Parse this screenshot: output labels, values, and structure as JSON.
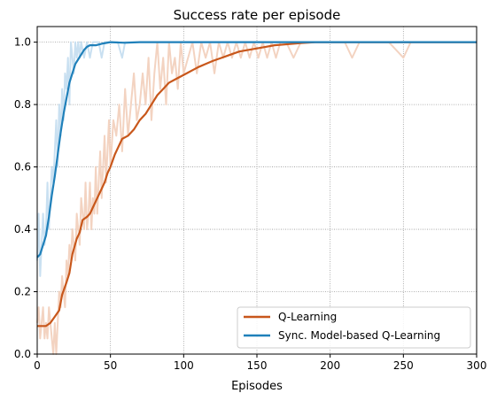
{
  "chart_data": {
    "type": "line",
    "title": "Success rate per episode",
    "xlabel": "Episodes",
    "ylabel": "",
    "xlim": [
      0,
      300
    ],
    "ylim": [
      0,
      1.05
    ],
    "x_ticks": [
      0,
      50,
      100,
      150,
      200,
      250,
      300
    ],
    "x_tick_labels": [
      "0",
      "50",
      "100",
      "150",
      "200",
      "250",
      "300"
    ],
    "y_ticks": [
      0,
      0.2,
      0.4,
      0.6,
      0.8,
      1.0
    ],
    "y_tick_labels": [
      "0.0",
      "0.2",
      "0.4",
      "0.6",
      "0.8",
      "1.0"
    ],
    "grid": true,
    "legend_position": "bottom-right",
    "series": [
      {
        "name": "Q-Learning",
        "color": "#c8571b",
        "raw_color": "#f3d3c1",
        "smoothed": [
          [
            0,
            0.09
          ],
          [
            3,
            0.09
          ],
          [
            6,
            0.09
          ],
          [
            9,
            0.1
          ],
          [
            12,
            0.12
          ],
          [
            15,
            0.14
          ],
          [
            17,
            0.19
          ],
          [
            20,
            0.23
          ],
          [
            22,
            0.26
          ],
          [
            24,
            0.32
          ],
          [
            27,
            0.37
          ],
          [
            29,
            0.39
          ],
          [
            31,
            0.43
          ],
          [
            34,
            0.44
          ],
          [
            36,
            0.45
          ],
          [
            38,
            0.47
          ],
          [
            40,
            0.49
          ],
          [
            43,
            0.52
          ],
          [
            46,
            0.55
          ],
          [
            48,
            0.58
          ],
          [
            50,
            0.6
          ],
          [
            53,
            0.64
          ],
          [
            55,
            0.66
          ],
          [
            58,
            0.69
          ],
          [
            62,
            0.7
          ],
          [
            66,
            0.72
          ],
          [
            70,
            0.75
          ],
          [
            74,
            0.77
          ],
          [
            78,
            0.8
          ],
          [
            82,
            0.83
          ],
          [
            86,
            0.85
          ],
          [
            90,
            0.87
          ],
          [
            94,
            0.88
          ],
          [
            98,
            0.89
          ],
          [
            102,
            0.9
          ],
          [
            106,
            0.91
          ],
          [
            110,
            0.92
          ],
          [
            115,
            0.93
          ],
          [
            120,
            0.94
          ],
          [
            126,
            0.95
          ],
          [
            132,
            0.96
          ],
          [
            138,
            0.97
          ],
          [
            144,
            0.975
          ],
          [
            150,
            0.98
          ],
          [
            156,
            0.985
          ],
          [
            162,
            0.99
          ],
          [
            170,
            0.993
          ],
          [
            180,
            0.997
          ],
          [
            190,
            1.0
          ],
          [
            210,
            1.0
          ],
          [
            230,
            1.0
          ],
          [
            250,
            1.0
          ],
          [
            270,
            1.0
          ],
          [
            300,
            1.0
          ]
        ],
        "raw": [
          [
            0,
            0.1
          ],
          [
            1,
            0.15
          ],
          [
            2,
            0.05
          ],
          [
            3,
            0.1
          ],
          [
            4,
            0.15
          ],
          [
            5,
            0.05
          ],
          [
            6,
            0.1
          ],
          [
            7,
            0.05
          ],
          [
            8,
            0.15
          ],
          [
            9,
            0.1
          ],
          [
            10,
            0.05
          ],
          [
            11,
            0.0
          ],
          [
            12,
            0.1
          ],
          [
            13,
            0.0
          ],
          [
            14,
            0.1
          ],
          [
            15,
            0.2
          ],
          [
            16,
            0.15
          ],
          [
            17,
            0.25
          ],
          [
            18,
            0.2
          ],
          [
            19,
            0.15
          ],
          [
            20,
            0.3
          ],
          [
            21,
            0.25
          ],
          [
            22,
            0.35
          ],
          [
            23,
            0.3
          ],
          [
            24,
            0.4
          ],
          [
            25,
            0.35
          ],
          [
            26,
            0.3
          ],
          [
            27,
            0.45
          ],
          [
            28,
            0.4
          ],
          [
            29,
            0.35
          ],
          [
            30,
            0.5
          ],
          [
            31,
            0.45
          ],
          [
            32,
            0.4
          ],
          [
            33,
            0.55
          ],
          [
            34,
            0.4
          ],
          [
            35,
            0.45
          ],
          [
            36,
            0.55
          ],
          [
            37,
            0.4
          ],
          [
            38,
            0.5
          ],
          [
            39,
            0.45
          ],
          [
            40,
            0.6
          ],
          [
            41,
            0.45
          ],
          [
            42,
            0.55
          ],
          [
            43,
            0.65
          ],
          [
            44,
            0.5
          ],
          [
            45,
            0.6
          ],
          [
            46,
            0.7
          ],
          [
            47,
            0.55
          ],
          [
            48,
            0.65
          ],
          [
            49,
            0.75
          ],
          [
            50,
            0.6
          ],
          [
            52,
            0.75
          ],
          [
            54,
            0.7
          ],
          [
            56,
            0.8
          ],
          [
            58,
            0.65
          ],
          [
            60,
            0.85
          ],
          [
            62,
            0.7
          ],
          [
            64,
            0.8
          ],
          [
            66,
            0.9
          ],
          [
            68,
            0.75
          ],
          [
            70,
            0.8
          ],
          [
            72,
            0.9
          ],
          [
            74,
            0.8
          ],
          [
            76,
            0.95
          ],
          [
            78,
            0.75
          ],
          [
            80,
            0.9
          ],
          [
            82,
            1.0
          ],
          [
            84,
            0.85
          ],
          [
            86,
            0.95
          ],
          [
            88,
            0.8
          ],
          [
            90,
            1.0
          ],
          [
            92,
            0.9
          ],
          [
            94,
            0.95
          ],
          [
            96,
            0.85
          ],
          [
            98,
            1.0
          ],
          [
            100,
            0.9
          ],
          [
            103,
            0.95
          ],
          [
            106,
            1.0
          ],
          [
            109,
            0.9
          ],
          [
            112,
            1.0
          ],
          [
            115,
            0.95
          ],
          [
            118,
            1.0
          ],
          [
            121,
            0.9
          ],
          [
            124,
            1.0
          ],
          [
            127,
            0.95
          ],
          [
            130,
            1.0
          ],
          [
            133,
            0.95
          ],
          [
            136,
            1.0
          ],
          [
            139,
            0.95
          ],
          [
            142,
            1.0
          ],
          [
            145,
            0.95
          ],
          [
            148,
            1.0
          ],
          [
            151,
            0.95
          ],
          [
            154,
            1.0
          ],
          [
            157,
            0.95
          ],
          [
            160,
            1.0
          ],
          [
            163,
            0.95
          ],
          [
            166,
            1.0
          ],
          [
            170,
            1.0
          ],
          [
            175,
            0.95
          ],
          [
            180,
            1.0
          ],
          [
            190,
            1.0
          ],
          [
            200,
            1.0
          ],
          [
            210,
            1.0
          ],
          [
            215,
            0.95
          ],
          [
            220,
            1.0
          ],
          [
            240,
            1.0
          ],
          [
            250,
            0.95
          ],
          [
            255,
            1.0
          ],
          [
            300,
            1.0
          ]
        ]
      },
      {
        "name": "Sync. Model-based Q-Learning",
        "color": "#1f80ba",
        "raw_color": "#c9e0f1",
        "smoothed": [
          [
            0,
            0.31
          ],
          [
            2,
            0.32
          ],
          [
            4,
            0.35
          ],
          [
            6,
            0.38
          ],
          [
            8,
            0.44
          ],
          [
            10,
            0.51
          ],
          [
            12,
            0.57
          ],
          [
            14,
            0.64
          ],
          [
            16,
            0.71
          ],
          [
            18,
            0.77
          ],
          [
            20,
            0.82
          ],
          [
            22,
            0.87
          ],
          [
            24,
            0.9
          ],
          [
            26,
            0.93
          ],
          [
            28,
            0.945
          ],
          [
            30,
            0.96
          ],
          [
            32,
            0.975
          ],
          [
            34,
            0.985
          ],
          [
            36,
            0.99
          ],
          [
            40,
            0.99
          ],
          [
            44,
            0.995
          ],
          [
            50,
            1.0
          ],
          [
            60,
            0.998
          ],
          [
            70,
            1.0
          ],
          [
            100,
            1.0
          ],
          [
            150,
            1.0
          ],
          [
            200,
            1.0
          ],
          [
            250,
            1.0
          ],
          [
            300,
            1.0
          ]
        ],
        "raw": [
          [
            0,
            0.3
          ],
          [
            1,
            0.45
          ],
          [
            2,
            0.25
          ],
          [
            3,
            0.35
          ],
          [
            4,
            0.45
          ],
          [
            5,
            0.35
          ],
          [
            6,
            0.4
          ],
          [
            7,
            0.55
          ],
          [
            8,
            0.4
          ],
          [
            9,
            0.5
          ],
          [
            10,
            0.6
          ],
          [
            11,
            0.55
          ],
          [
            12,
            0.65
          ],
          [
            13,
            0.75
          ],
          [
            14,
            0.6
          ],
          [
            15,
            0.8
          ],
          [
            16,
            0.7
          ],
          [
            17,
            0.85
          ],
          [
            18,
            0.75
          ],
          [
            19,
            0.9
          ],
          [
            20,
            0.85
          ],
          [
            21,
            0.95
          ],
          [
            22,
            0.8
          ],
          [
            23,
            1.0
          ],
          [
            24,
            0.95
          ],
          [
            25,
            0.9
          ],
          [
            26,
            1.0
          ],
          [
            27,
            0.95
          ],
          [
            28,
            1.0
          ],
          [
            29,
            0.95
          ],
          [
            30,
            1.0
          ],
          [
            32,
            0.95
          ],
          [
            34,
            1.0
          ],
          [
            36,
            0.95
          ],
          [
            38,
            1.0
          ],
          [
            40,
            1.0
          ],
          [
            42,
            1.0
          ],
          [
            44,
            0.95
          ],
          [
            46,
            1.0
          ],
          [
            55,
            1.0
          ],
          [
            58,
            0.95
          ],
          [
            60,
            1.0
          ],
          [
            300,
            1.0
          ]
        ]
      }
    ]
  }
}
